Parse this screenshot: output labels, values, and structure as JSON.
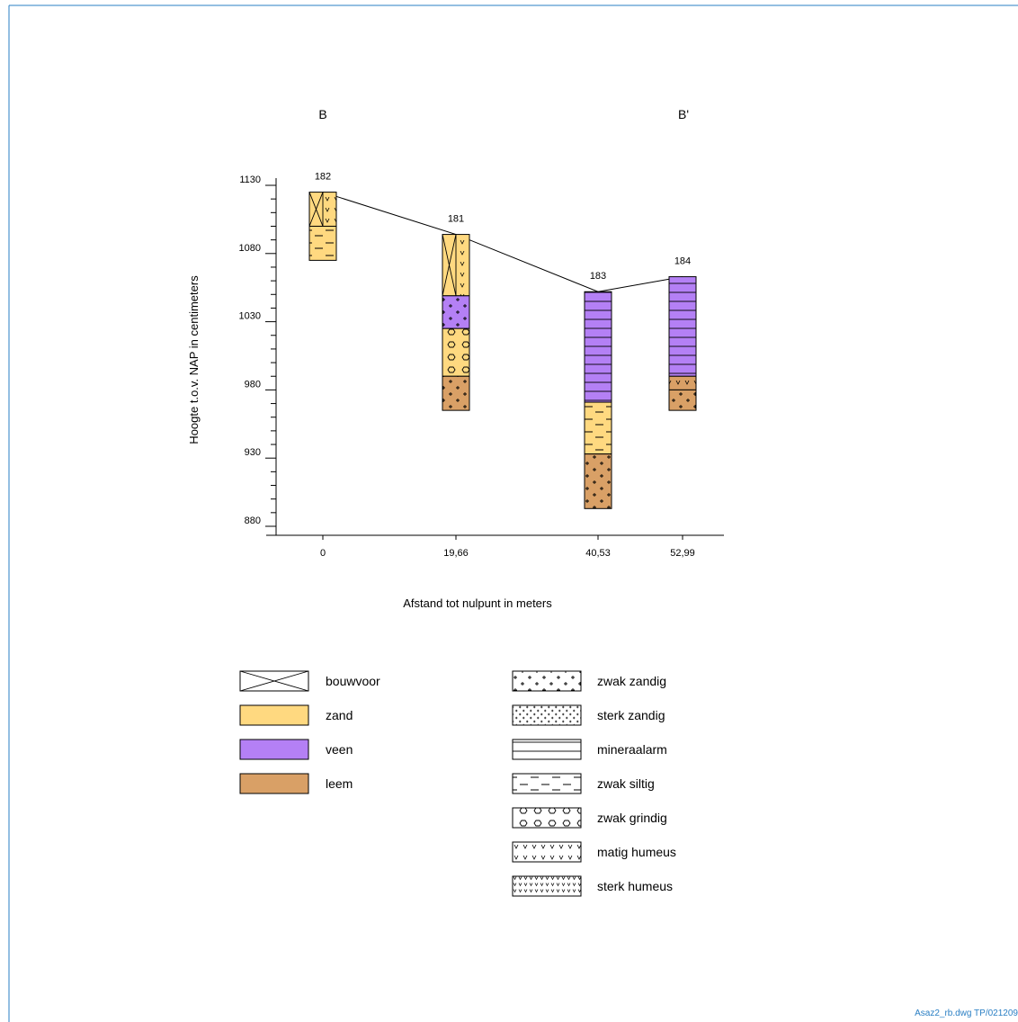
{
  "section": {
    "start_label": "B",
    "end_label": "B'"
  },
  "axes": {
    "ylabel": "Hoogte t.o.v. NAP in centimeters",
    "xlabel": "Afstand tot nulpunt in meters",
    "yticks": [
      1130,
      1080,
      1030,
      980,
      930,
      880
    ],
    "ytick_labels": [
      "1130",
      "1080",
      "1030",
      "980",
      "930",
      "880"
    ]
  },
  "chart_data": {
    "type": "borehole-profile",
    "x_unit": "m",
    "y_unit": "cm NAP",
    "ylim": [
      870,
      1135
    ],
    "boreholes": [
      {
        "id": "182",
        "x": 0,
        "x_label": "0",
        "top": 1125,
        "layers": [
          {
            "top": 1125,
            "bottom": 1100,
            "material": "zand",
            "mods": [
              "bouwvoor",
              "matig humeus"
            ]
          },
          {
            "top": 1100,
            "bottom": 1075,
            "material": "zand",
            "mods": [
              "zwak siltig"
            ]
          }
        ]
      },
      {
        "id": "181",
        "x": 19.66,
        "x_label": "19,66",
        "top": 1094,
        "layers": [
          {
            "top": 1094,
            "bottom": 1049,
            "material": "zand",
            "mods": [
              "bouwvoor",
              "matig humeus"
            ]
          },
          {
            "top": 1049,
            "bottom": 1025,
            "material": "veen",
            "mods": [
              "zwak zandig"
            ]
          },
          {
            "top": 1025,
            "bottom": 990,
            "material": "zand",
            "mods": [
              "zwak grindig"
            ]
          },
          {
            "top": 990,
            "bottom": 965,
            "material": "leem",
            "mods": [
              "zwak zandig"
            ]
          }
        ]
      },
      {
        "id": "183",
        "x": 40.53,
        "x_label": "40,53",
        "top": 1052,
        "layers": [
          {
            "top": 1052,
            "bottom": 971,
            "material": "veen",
            "mods": [
              "mineraalarm"
            ]
          },
          {
            "top": 971,
            "bottom": 933,
            "material": "zand",
            "mods": [
              "zwak siltig"
            ]
          },
          {
            "top": 933,
            "bottom": 893,
            "material": "leem",
            "mods": [
              "zwak zandig"
            ]
          }
        ]
      },
      {
        "id": "184",
        "x": 52.99,
        "x_label": "52,99",
        "top": 1063,
        "layers": [
          {
            "top": 1063,
            "bottom": 990,
            "material": "veen",
            "mods": [
              "mineraalarm"
            ]
          },
          {
            "top": 990,
            "bottom": 980,
            "material": "leem",
            "mods": [
              "matig humeus"
            ]
          },
          {
            "top": 980,
            "bottom": 965,
            "material": "leem",
            "mods": [
              "zwak zandig"
            ]
          }
        ]
      }
    ]
  },
  "legend": {
    "materials": [
      {
        "key": "bouwvoor",
        "label": "bouwvoor",
        "fill": "#ffffff",
        "pattern": "cross"
      },
      {
        "key": "zand",
        "label": "zand",
        "fill": "#ffd980",
        "pattern": "none"
      },
      {
        "key": "veen",
        "label": "veen",
        "fill": "#b480f5",
        "pattern": "none"
      },
      {
        "key": "leem",
        "label": "leem",
        "fill": "#d9a066",
        "pattern": "none"
      }
    ],
    "modifiers": [
      {
        "key": "zwak zandig",
        "label": "zwak zandig",
        "pattern": "plus-sparse"
      },
      {
        "key": "sterk zandig",
        "label": "sterk zandig",
        "pattern": "plus-dense"
      },
      {
        "key": "mineraalarm",
        "label": "mineraalarm",
        "pattern": "hlines"
      },
      {
        "key": "zwak siltig",
        "label": "zwak siltig",
        "pattern": "dashes"
      },
      {
        "key": "zwak grindig",
        "label": "zwak grindig",
        "pattern": "hexagons"
      },
      {
        "key": "matig humeus",
        "label": "matig humeus",
        "pattern": "v-sparse"
      },
      {
        "key": "sterk humeus",
        "label": "sterk humeus",
        "pattern": "v-dense"
      }
    ]
  },
  "footer": {
    "drawing_ref": "Asaz2_rb.dwg TP/021209"
  },
  "colors": {
    "frame": "#2a7fc4",
    "ink": "#000000"
  }
}
